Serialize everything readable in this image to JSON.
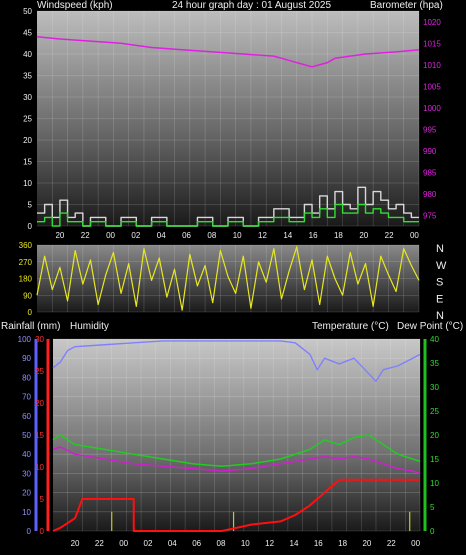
{
  "header": {
    "left": "Windspeed (kph)",
    "center": "24 hour graph day : 01 August 2025",
    "right": "Barometer (hpa)"
  },
  "labels": {
    "rainfall": "Rainfall (mm)",
    "humidity": "Humidity",
    "temperature": "Temperature (°C)",
    "dewpoint": "Dew Point (°C)"
  },
  "colors": {
    "wind_gust": "#d8d8d8",
    "wind_avg": "#33dd33",
    "barometer": "#e020e0",
    "direction": "#e8e820",
    "humidity": "#8080ff",
    "temperature": "#22cc22",
    "dewpoint": "#cc22cc",
    "rain": "#ff1010",
    "rain_rate": "#c8c820"
  },
  "time_ticks": [
    "20",
    "22",
    "00",
    "02",
    "04",
    "06",
    "08",
    "10",
    "12",
    "14",
    "16",
    "18",
    "20",
    "22",
    "00"
  ],
  "chart_data": [
    {
      "type": "line",
      "name": "wind-barometer",
      "x_range": [
        18.5,
        43.5
      ],
      "left_axis": {
        "label": "Windspeed (kph)",
        "ticks": [
          0,
          5,
          10,
          15,
          20,
          25,
          30,
          35,
          40,
          45,
          50
        ],
        "ylim": [
          0,
          50
        ]
      },
      "right_axis": {
        "label": "Barometer (hpa)",
        "ticks": [
          975,
          980,
          985,
          990,
          995,
          1000,
          1005,
          1010,
          1015,
          1020
        ],
        "ylim": [
          972.5,
          1022.5
        ]
      },
      "barometer": [
        [
          18.5,
          1016.5
        ],
        [
          20,
          1016
        ],
        [
          22,
          1015.5
        ],
        [
          24,
          1015
        ],
        [
          26,
          1014
        ],
        [
          28,
          1013.5
        ],
        [
          30,
          1013
        ],
        [
          32,
          1012.5
        ],
        [
          34,
          1012
        ],
        [
          35,
          1011
        ],
        [
          36.5,
          1009.5
        ],
        [
          37.5,
          1010.5
        ],
        [
          38,
          1011.5
        ],
        [
          40,
          1012.5
        ],
        [
          42,
          1013
        ],
        [
          43.5,
          1013.5
        ]
      ],
      "wind_gust": [
        [
          18.5,
          3
        ],
        [
          19,
          5
        ],
        [
          19.5,
          2
        ],
        [
          20,
          6
        ],
        [
          20.5,
          2
        ],
        [
          21,
          3
        ],
        [
          21.5,
          0
        ],
        [
          22,
          2
        ],
        [
          23,
          0
        ],
        [
          24,
          2
        ],
        [
          25,
          0
        ],
        [
          26,
          2
        ],
        [
          27,
          0
        ],
        [
          28,
          0
        ],
        [
          29,
          2
        ],
        [
          30,
          0
        ],
        [
          31,
          2
        ],
        [
          32,
          0
        ],
        [
          33,
          2
        ],
        [
          34,
          4
        ],
        [
          35,
          2
        ],
        [
          36,
          5
        ],
        [
          36.5,
          3
        ],
        [
          37,
          7
        ],
        [
          37.5,
          4
        ],
        [
          38,
          8
        ],
        [
          38.5,
          5
        ],
        [
          39,
          4
        ],
        [
          39.5,
          9
        ],
        [
          40,
          5
        ],
        [
          40.5,
          8
        ],
        [
          41,
          6
        ],
        [
          41.5,
          4
        ],
        [
          42,
          5
        ],
        [
          42.5,
          3
        ],
        [
          43,
          2
        ],
        [
          43.5,
          2
        ]
      ],
      "wind_avg": [
        [
          18.5,
          1
        ],
        [
          19,
          2
        ],
        [
          19.5,
          0
        ],
        [
          20,
          3
        ],
        [
          20.5,
          1
        ],
        [
          21,
          1
        ],
        [
          21.5,
          0
        ],
        [
          22,
          1
        ],
        [
          23,
          0
        ],
        [
          24,
          1
        ],
        [
          25,
          0
        ],
        [
          26,
          1
        ],
        [
          27,
          0
        ],
        [
          28,
          0
        ],
        [
          29,
          1
        ],
        [
          30,
          0
        ],
        [
          31,
          1
        ],
        [
          32,
          0
        ],
        [
          33,
          1
        ],
        [
          34,
          2
        ],
        [
          35,
          1
        ],
        [
          36,
          3
        ],
        [
          36.5,
          2
        ],
        [
          37,
          4
        ],
        [
          37.5,
          2
        ],
        [
          38,
          5
        ],
        [
          38.5,
          3
        ],
        [
          39,
          3
        ],
        [
          39.5,
          5
        ],
        [
          40,
          3
        ],
        [
          40.5,
          4
        ],
        [
          41,
          3
        ],
        [
          41.5,
          2
        ],
        [
          42,
          2
        ],
        [
          42.5,
          1
        ],
        [
          43,
          1
        ],
        [
          43.5,
          1
        ]
      ]
    },
    {
      "type": "scatter",
      "name": "wind-direction",
      "x_range": [
        18.5,
        43.5
      ],
      "left_axis": {
        "ticks": [
          0,
          90,
          180,
          270,
          360
        ],
        "ylim": [
          0,
          360
        ]
      },
      "right_axis": {
        "ticks": [
          "N",
          "W",
          "S",
          "E",
          "N"
        ]
      },
      "direction": [
        [
          18.5,
          90
        ],
        [
          19,
          300
        ],
        [
          19.5,
          120
        ],
        [
          20,
          240
        ],
        [
          20.5,
          60
        ],
        [
          21,
          330
        ],
        [
          21.5,
          150
        ],
        [
          22,
          280
        ],
        [
          22.5,
          40
        ],
        [
          23,
          200
        ],
        [
          23.5,
          320
        ],
        [
          24,
          100
        ],
        [
          24.5,
          260
        ],
        [
          25,
          30
        ],
        [
          25.5,
          340
        ],
        [
          26,
          170
        ],
        [
          26.5,
          290
        ],
        [
          27,
          80
        ],
        [
          27.5,
          230
        ],
        [
          28,
          10
        ],
        [
          28.5,
          310
        ],
        [
          29,
          140
        ],
        [
          29.5,
          250
        ],
        [
          30,
          50
        ],
        [
          30.5,
          330
        ],
        [
          31,
          190
        ],
        [
          31.5,
          100
        ],
        [
          32,
          300
        ],
        [
          32.5,
          20
        ],
        [
          33,
          270
        ],
        [
          33.5,
          160
        ],
        [
          34,
          340
        ],
        [
          34.5,
          70
        ],
        [
          35,
          220
        ],
        [
          35.5,
          350
        ],
        [
          36,
          120
        ],
        [
          36.5,
          280
        ],
        [
          37,
          40
        ],
        [
          37.5,
          300
        ],
        [
          38,
          180
        ],
        [
          38.5,
          90
        ],
        [
          39,
          320
        ],
        [
          39.5,
          150
        ],
        [
          40,
          260
        ],
        [
          40.5,
          30
        ],
        [
          41,
          300
        ],
        [
          41.5,
          200
        ],
        [
          42,
          110
        ],
        [
          42.5,
          340
        ],
        [
          43,
          250
        ],
        [
          43.5,
          170
        ]
      ]
    },
    {
      "type": "line",
      "name": "rain-humidity-temperature",
      "x_range": [
        18.5,
        43.5
      ],
      "humidity_axis": {
        "ticks": [
          0,
          10,
          20,
          30,
          40,
          50,
          60,
          70,
          80,
          90,
          100
        ],
        "ylim": [
          0,
          100
        ]
      },
      "rain_axis": {
        "ticks": [
          0,
          5,
          10,
          15,
          20,
          25,
          30
        ],
        "ylim": [
          0,
          30
        ]
      },
      "temp_axis": {
        "ticks": [
          0,
          5,
          10,
          15,
          20,
          25,
          30,
          35,
          40
        ],
        "ylim": [
          0,
          40
        ]
      },
      "humidity": [
        [
          18.5,
          85
        ],
        [
          19,
          88
        ],
        [
          19.5,
          94
        ],
        [
          20,
          96
        ],
        [
          22,
          97
        ],
        [
          24,
          98
        ],
        [
          26,
          99
        ],
        [
          28,
          99
        ],
        [
          30,
          99
        ],
        [
          32,
          99
        ],
        [
          34,
          99
        ],
        [
          35,
          98
        ],
        [
          36,
          92
        ],
        [
          36.5,
          84
        ],
        [
          37,
          90
        ],
        [
          38,
          87
        ],
        [
          39,
          90
        ],
        [
          40,
          82
        ],
        [
          40.5,
          78
        ],
        [
          41,
          84
        ],
        [
          42,
          86
        ],
        [
          43,
          90
        ],
        [
          43.5,
          92
        ]
      ],
      "temperature": [
        [
          18.5,
          19
        ],
        [
          19,
          20
        ],
        [
          20,
          18
        ],
        [
          22,
          17
        ],
        [
          24,
          16
        ],
        [
          26,
          15
        ],
        [
          28,
          14
        ],
        [
          30,
          13.5
        ],
        [
          32,
          14
        ],
        [
          34,
          15
        ],
        [
          36,
          17
        ],
        [
          37,
          19
        ],
        [
          38,
          18
        ],
        [
          39,
          19.5
        ],
        [
          40,
          20
        ],
        [
          41,
          18
        ],
        [
          42,
          16
        ],
        [
          43,
          15
        ],
        [
          43.5,
          14.5
        ]
      ],
      "dewpoint": [
        [
          18.5,
          17
        ],
        [
          19,
          17.5
        ],
        [
          20,
          16
        ],
        [
          22,
          15
        ],
        [
          24,
          14
        ],
        [
          26,
          13.5
        ],
        [
          28,
          13
        ],
        [
          30,
          12.5
        ],
        [
          32,
          13
        ],
        [
          34,
          14
        ],
        [
          36,
          15
        ],
        [
          37,
          15.5
        ],
        [
          38,
          15
        ],
        [
          39,
          15.5
        ],
        [
          40,
          15
        ],
        [
          41,
          14
        ],
        [
          42,
          13
        ],
        [
          43,
          12.5
        ],
        [
          43.5,
          12
        ]
      ],
      "rain": [
        [
          18.5,
          0
        ],
        [
          19,
          0.5
        ],
        [
          20,
          2
        ],
        [
          20.5,
          5
        ],
        [
          24,
          5
        ],
        [
          24,
          0
        ],
        [
          30,
          0
        ],
        [
          31,
          0.5
        ],
        [
          32,
          1
        ],
        [
          34,
          1.5
        ],
        [
          35,
          2.5
        ],
        [
          36,
          4
        ],
        [
          37,
          6
        ],
        [
          38,
          8
        ],
        [
          43.5,
          8
        ]
      ],
      "rain_rate": [
        [
          22.5,
          3
        ],
        [
          30.8,
          3
        ],
        [
          42.8,
          3
        ]
      ]
    }
  ]
}
